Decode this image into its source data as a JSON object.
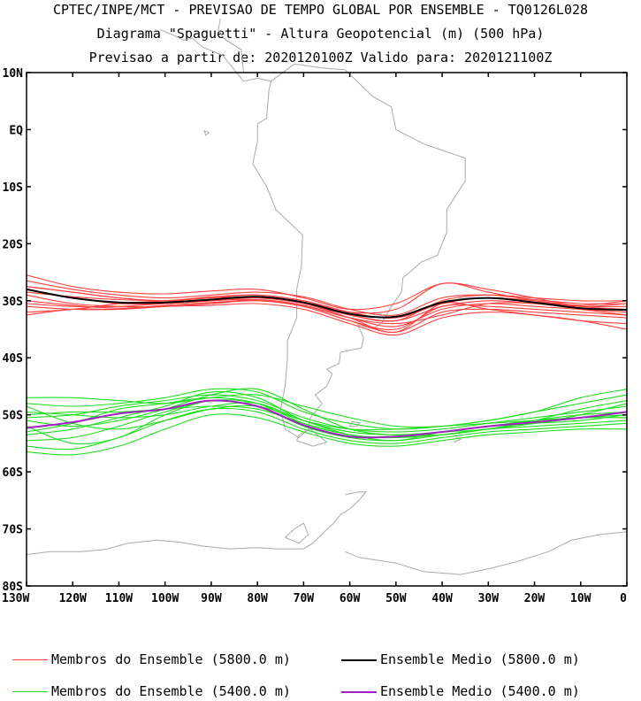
{
  "header": {
    "line1": "CPTEC/INPE/MCT - PREVISAO DE TEMPO GLOBAL POR ENSEMBLE - TQ0126L028",
    "line2": "Diagrama \"Spaguetti\" - Altura Geopotencial (m) (500 hPa)",
    "line3": "Previsao a partir de: 2020120100Z  Valido para: 2020121100Z"
  },
  "colors": {
    "members_5800": "#ff4040",
    "mean_5800": "#000000",
    "members_5400": "#22dd22",
    "mean_5400": "#a020c0",
    "coast": "#aaaaaa"
  },
  "chart_data": {
    "type": "line",
    "title": "Diagrama \"Spaguetti\" - Altura Geopotencial (m) (500 hPa)",
    "xlabel": "",
    "ylabel": "",
    "xlim": [
      -130,
      0
    ],
    "ylim": [
      -80,
      10
    ],
    "x_tick_values": [
      -130,
      -120,
      -110,
      -100,
      -90,
      -80,
      -70,
      -60,
      -50,
      -40,
      -30,
      -20,
      -10,
      0
    ],
    "x_tick_labels": [
      "130W",
      "120W",
      "110W",
      "100W",
      "90W",
      "80W",
      "70W",
      "60W",
      "50W",
      "40W",
      "30W",
      "20W",
      "10W",
      "0"
    ],
    "y_tick_values": [
      10,
      0,
      -10,
      -20,
      -30,
      -40,
      -50,
      -60,
      -70,
      -80
    ],
    "y_tick_labels": [
      "10N",
      "EQ",
      "10S",
      "20S",
      "30S",
      "40S",
      "50S",
      "60S",
      "70S",
      "80S"
    ],
    "grid": false,
    "legend_position": "bottom",
    "x": [
      -130,
      -120,
      -110,
      -100,
      -90,
      -80,
      -70,
      -60,
      -50,
      -40,
      -30,
      -20,
      -10,
      0
    ],
    "series": [
      {
        "name": "Ensemble Medio (5800.0 m)",
        "group": "mean5800",
        "values": [
          -28,
          -29.5,
          -30.3,
          -30.3,
          -29.8,
          -29.3,
          -30.3,
          -32.3,
          -32.8,
          -30.3,
          -29.5,
          -30.3,
          -31.3,
          -31.6
        ]
      },
      {
        "group": "m5800",
        "values": [
          -25.5,
          -27.5,
          -28.5,
          -28.8,
          -28.3,
          -28.0,
          -29.5,
          -31.5,
          -30.5,
          -27.0,
          -28.0,
          -29.5,
          -31.0,
          -31.5
        ]
      },
      {
        "group": "m5800",
        "values": [
          -26.5,
          -28.0,
          -29.0,
          -29.5,
          -29.0,
          -28.5,
          -29.3,
          -31.5,
          -32.5,
          -29.5,
          -29.0,
          -29.8,
          -30.5,
          -30.5
        ]
      },
      {
        "group": "m5800",
        "values": [
          -27.5,
          -28.5,
          -29.5,
          -30.0,
          -29.3,
          -29.0,
          -30.0,
          -32.0,
          -33.0,
          -30.5,
          -29.5,
          -30.0,
          -30.8,
          -30.0
        ]
      },
      {
        "group": "m5800",
        "values": [
          -28.5,
          -29.3,
          -29.8,
          -30.0,
          -30.0,
          -29.5,
          -30.5,
          -32.5,
          -33.5,
          -31.0,
          -30.0,
          -30.5,
          -31.0,
          -31.0
        ]
      },
      {
        "group": "m5800",
        "values": [
          -29.0,
          -30.5,
          -31.0,
          -31.0,
          -30.5,
          -29.8,
          -30.8,
          -33.0,
          -34.5,
          -31.5,
          -30.5,
          -31.0,
          -31.5,
          -32.0
        ]
      },
      {
        "group": "m5800",
        "values": [
          -30.0,
          -30.8,
          -31.3,
          -30.8,
          -30.3,
          -30.0,
          -31.0,
          -33.5,
          -35.0,
          -31.0,
          -31.0,
          -31.5,
          -32.0,
          -32.5
        ]
      },
      {
        "group": "m5800",
        "values": [
          -31.0,
          -31.5,
          -31.5,
          -31.0,
          -30.5,
          -30.0,
          -31.0,
          -33.5,
          -35.5,
          -32.0,
          -31.5,
          -32.0,
          -32.5,
          -33.0
        ]
      },
      {
        "group": "m5800",
        "values": [
          -32.0,
          -31.5,
          -30.5,
          -30.0,
          -29.5,
          -29.5,
          -30.5,
          -33.0,
          -35.5,
          -30.5,
          -31.5,
          -32.5,
          -33.5,
          -34.0
        ]
      },
      {
        "group": "m5800",
        "values": [
          -32.5,
          -31.5,
          -31.5,
          -31.0,
          -30.8,
          -30.5,
          -31.5,
          -34.0,
          -36.0,
          -33.0,
          -32.0,
          -32.5,
          -33.5,
          -35.0
        ]
      },
      {
        "group": "m5800",
        "values": [
          -27.5,
          -28.5,
          -29.5,
          -30.0,
          -29.5,
          -29.0,
          -30.0,
          -32.0,
          -31.5,
          -27.0,
          -28.5,
          -30.0,
          -31.0,
          -30.5
        ]
      },
      {
        "group": "m5800",
        "values": [
          -28.0,
          -29.5,
          -30.5,
          -30.5,
          -30.0,
          -29.3,
          -30.3,
          -32.5,
          -33.5,
          -30.0,
          -29.0,
          -29.5,
          -30.0,
          -30.0
        ]
      },
      {
        "group": "m5800",
        "values": [
          -30.5,
          -31.0,
          -31.0,
          -30.5,
          -30.0,
          -29.8,
          -30.8,
          -33.0,
          -34.0,
          -32.5,
          -30.5,
          -30.5,
          -31.5,
          -32.5
        ]
      },
      {
        "name": "Ensemble Medio (5400.0 m)",
        "group": "mean5400",
        "values": [
          -52.3,
          -51.3,
          -49.8,
          -49.0,
          -47.5,
          -48.5,
          -51.8,
          -53.8,
          -53.8,
          -53.0,
          -52.0,
          -51.3,
          -50.5,
          -49.5
        ]
      },
      {
        "group": "m5400",
        "values": [
          -47.0,
          -47.0,
          -47.5,
          -48.0,
          -47.0,
          -46.5,
          -48.5,
          -50.5,
          -52.0,
          -52.0,
          -51.0,
          -49.5,
          -48.0,
          -46.5
        ]
      },
      {
        "group": "m5400",
        "values": [
          -48.0,
          -48.5,
          -48.0,
          -47.0,
          -45.5,
          -46.0,
          -49.5,
          -51.5,
          -52.5,
          -52.0,
          -51.0,
          -49.5,
          -47.0,
          -45.5
        ]
      },
      {
        "group": "m5400",
        "values": [
          -50.5,
          -50.0,
          -48.5,
          -47.5,
          -46.5,
          -47.5,
          -50.5,
          -52.5,
          -53.0,
          -52.5,
          -51.5,
          -50.5,
          -49.5,
          -48.5
        ]
      },
      {
        "group": "m5400",
        "values": [
          -53.0,
          -51.5,
          -49.0,
          -48.0,
          -47.0,
          -48.0,
          -51.5,
          -53.5,
          -54.0,
          -53.0,
          -52.0,
          -51.0,
          -50.5,
          -50.0
        ]
      },
      {
        "group": "m5400",
        "values": [
          -54.5,
          -54.0,
          -52.0,
          -49.5,
          -47.5,
          -48.5,
          -52.0,
          -54.0,
          -54.5,
          -53.5,
          -52.5,
          -52.0,
          -51.5,
          -51.0
        ]
      },
      {
        "group": "m5400",
        "values": [
          -55.5,
          -56.0,
          -54.0,
          -51.0,
          -49.0,
          -49.5,
          -52.5,
          -54.5,
          -55.0,
          -54.0,
          -53.0,
          -52.5,
          -52.0,
          -51.5
        ]
      },
      {
        "group": "m5400",
        "values": [
          -56.5,
          -57.0,
          -55.5,
          -52.5,
          -50.0,
          -50.5,
          -53.0,
          -55.0,
          -55.5,
          -54.5,
          -53.5,
          -53.0,
          -52.5,
          -52.5
        ]
      },
      {
        "group": "m5400",
        "values": [
          -52.0,
          -55.0,
          -54.0,
          -50.0,
          -47.5,
          -48.0,
          -51.0,
          -53.5,
          -54.5,
          -53.0,
          -52.0,
          -51.5,
          -51.0,
          -50.0
        ]
      },
      {
        "group": "m5400",
        "values": [
          -49.5,
          -50.0,
          -50.5,
          -50.0,
          -48.5,
          -48.0,
          -51.0,
          -53.0,
          -53.5,
          -53.0,
          -52.5,
          -51.0,
          -49.0,
          -47.5
        ]
      },
      {
        "group": "m5400",
        "values": [
          -51.0,
          -52.0,
          -51.0,
          -49.0,
          -46.5,
          -45.5,
          -49.0,
          -52.5,
          -53.5,
          -53.0,
          -52.0,
          -51.5,
          -50.5,
          -49.5
        ]
      },
      {
        "group": "m5400",
        "values": [
          -53.5,
          -52.5,
          -50.5,
          -48.5,
          -46.0,
          -47.0,
          -51.0,
          -53.0,
          -53.5,
          -53.5,
          -52.5,
          -51.5,
          -50.0,
          -48.0
        ]
      },
      {
        "group": "m5400",
        "values": [
          -50.0,
          -49.5,
          -49.5,
          -49.0,
          -48.5,
          -49.0,
          -51.5,
          -53.5,
          -54.0,
          -53.5,
          -52.5,
          -51.0,
          -50.0,
          -49.5
        ]
      },
      {
        "group": "m5400",
        "values": [
          -48.5,
          -51.5,
          -52.5,
          -51.0,
          -49.0,
          -48.5,
          -51.0,
          -52.5,
          -52.5,
          -52.0,
          -51.5,
          -51.0,
          -50.5,
          -50.5
        ]
      }
    ]
  },
  "legend": {
    "members_5800_label": "Membros do Ensemble (5800.0 m)",
    "mean_5800_label": "Ensemble Medio (5800.0 m)",
    "members_5400_label": "Membros do Ensemble (5400.0 m)",
    "mean_5400_label": "Ensemble Medio (5400.0 m)"
  }
}
